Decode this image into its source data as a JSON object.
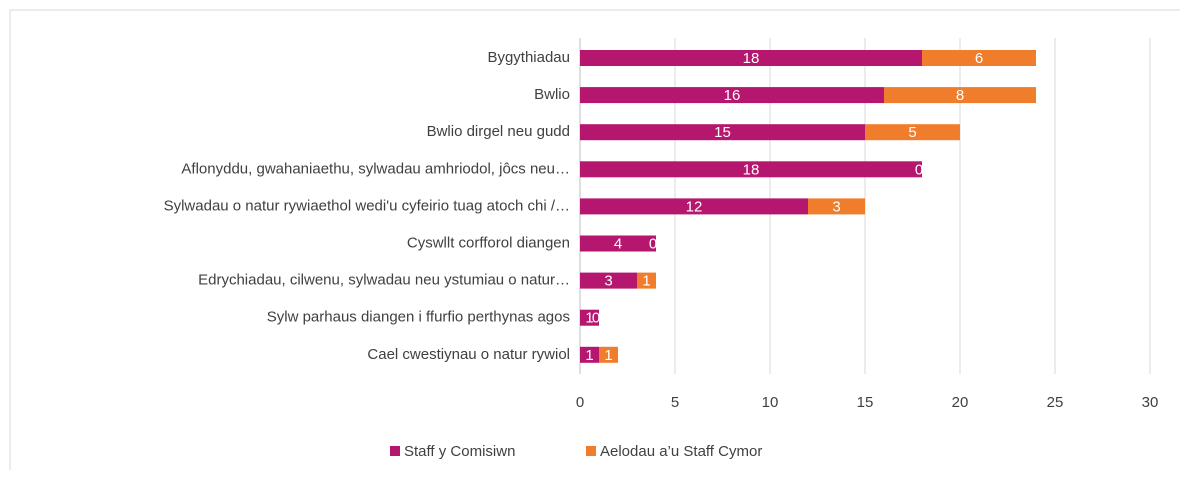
{
  "chart_data": {
    "type": "stacked-barh",
    "categories": [
      "Bygythiadau",
      "Bwlio",
      "Bwlio dirgel neu gudd",
      "Aflonyddu, gwahaniaethu, sylwadau amhriodol, jôcs neu…",
      "Sylwadau o natur rywiaethol wedi'u cyfeirio tuag atoch chi /…",
      "Cyswllt corfforol diangen",
      "Edrychiadau, cilwenu, sylwadau neu ystumiau o natur…",
      "Sylw parhaus diangen i ffurfio perthynas agos",
      "Cael cwestiynau o natur rywiol"
    ],
    "series": [
      {
        "name": "Staff y Comisiwn",
        "color": "#b5166e",
        "values": [
          18,
          16,
          15,
          18,
          12,
          4,
          3,
          1,
          1
        ]
      },
      {
        "name": "Aelodau a’u Staff Cymor",
        "color": "#ef7d2b",
        "values": [
          6,
          8,
          5,
          0,
          3,
          0,
          1,
          0,
          1
        ]
      }
    ],
    "xlim": [
      0,
      30
    ],
    "xticks": [
      0,
      5,
      10,
      15,
      20,
      25,
      30
    ],
    "grid": true,
    "legend": "bottom"
  }
}
